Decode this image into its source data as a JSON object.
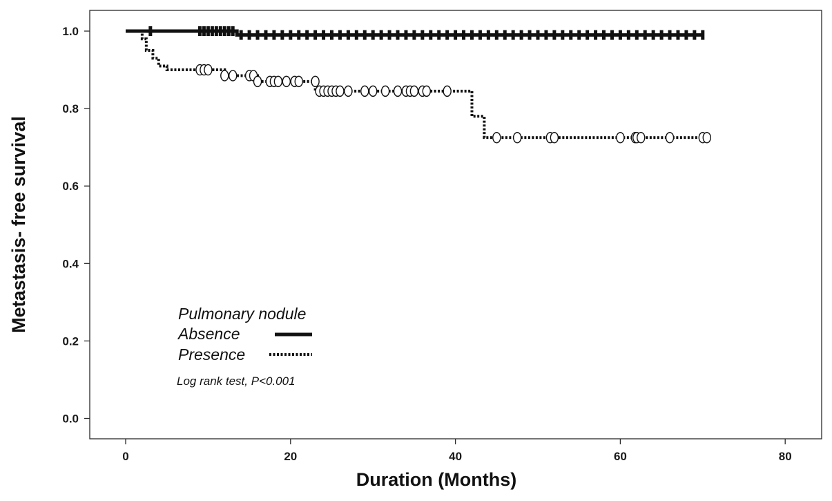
{
  "chart_data": {
    "type": "line",
    "title": "",
    "xlabel": "Duration (Months)",
    "ylabel": "Metastasis- free survival",
    "xlim": [
      0,
      80
    ],
    "ylim": [
      0,
      1
    ],
    "xticks": [
      0,
      20,
      40,
      60,
      80
    ],
    "yticks": [
      0.0,
      0.2,
      0.4,
      0.6,
      0.8,
      1.0
    ],
    "xtick_labels": [
      "0",
      "20",
      "40",
      "60",
      "80"
    ],
    "ytick_labels": [
      "0.0",
      "0.2",
      "0.4",
      "0.6",
      "0.8",
      "1.0"
    ],
    "grid": false,
    "legend": {
      "title": "Pulmonary  nodule",
      "placement": "lower-left"
    },
    "annotation": "Log rank test, P<0.001",
    "series": [
      {
        "name": "Absence",
        "line_style": "solid",
        "color": "#111111",
        "step_x": [
          0,
          13,
          13.5,
          70
        ],
        "step_y": [
          1.0,
          1.0,
          0.99,
          0.99
        ],
        "censor_x": [
          3,
          9,
          9.5,
          10,
          10.5,
          11,
          11.5,
          12,
          12.5,
          13,
          14,
          15,
          16,
          17,
          18,
          19,
          20,
          21,
          22,
          23,
          24,
          25,
          26,
          27,
          28,
          29,
          30,
          31,
          32,
          33,
          34,
          35,
          36,
          37,
          38,
          39,
          40,
          41,
          42,
          43,
          44,
          45,
          46,
          47,
          48,
          49,
          50,
          51,
          52,
          53,
          54,
          55,
          56,
          57,
          58,
          59,
          60,
          61,
          62,
          63,
          64,
          65,
          66,
          67,
          68,
          69,
          70
        ]
      },
      {
        "name": "Presence",
        "line_style": "dotted",
        "color": "#111111",
        "step_x": [
          0,
          2,
          2.5,
          3.3,
          4,
          5,
          9,
          12,
          15,
          16,
          23,
          39.5,
          42,
          43.5,
          70
        ],
        "step_y": [
          1.0,
          0.98,
          0.95,
          0.93,
          0.91,
          0.9,
          0.9,
          0.885,
          0.885,
          0.87,
          0.845,
          0.845,
          0.78,
          0.725,
          0.725
        ],
        "censor_x": [
          9,
          9.5,
          10,
          12,
          13,
          15,
          15.5,
          16,
          17.5,
          18,
          18.5,
          19.5,
          20.5,
          21,
          23,
          23.5,
          24,
          24.5,
          25,
          25.5,
          26,
          27,
          29,
          30,
          31.5,
          33,
          34,
          34.5,
          35,
          36,
          36.5,
          39,
          45,
          47.5,
          51.5,
          52,
          60,
          61.8,
          62,
          62.5,
          66,
          70,
          70.5
        ],
        "censor_y": [
          0.9,
          0.9,
          0.9,
          0.885,
          0.885,
          0.885,
          0.885,
          0.87,
          0.87,
          0.87,
          0.87,
          0.87,
          0.87,
          0.87,
          0.87,
          0.845,
          0.845,
          0.845,
          0.845,
          0.845,
          0.845,
          0.845,
          0.845,
          0.845,
          0.845,
          0.845,
          0.845,
          0.845,
          0.845,
          0.845,
          0.845,
          0.845,
          0.725,
          0.725,
          0.725,
          0.725,
          0.725,
          0.725,
          0.725,
          0.725,
          0.725,
          0.725,
          0.725
        ]
      }
    ]
  }
}
